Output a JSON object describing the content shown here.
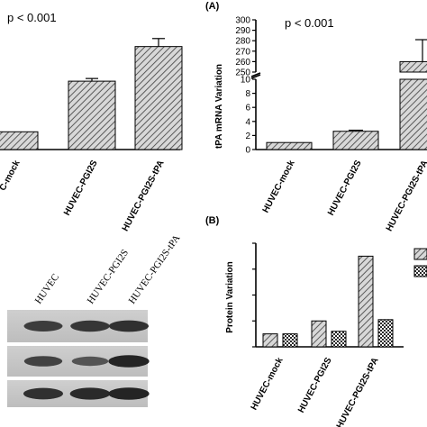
{
  "chart_data": [
    {
      "id": "left-partial-bar",
      "type": "bar",
      "title": "p < 0.001",
      "categories": [
        "HUVEC-mock",
        "HUVEC-PGI2S",
        "HUVEC-PGI2S-tPA"
      ],
      "tick_labels": [
        "C-mock",
        "HUVEC-PGI2S",
        "HUVEC-PGI2S-tPA"
      ],
      "values": [
        1.0,
        3.85,
        5.8
      ],
      "errors": [
        0.0,
        0.15,
        0.45
      ],
      "ylim": [
        0,
        7
      ]
    },
    {
      "id": "panel-A",
      "panel_label": "(A)",
      "type": "bar",
      "title": "p < 0.001",
      "ylabel": "tPA mRNA Variation",
      "categories": [
        "HUVEC-mock",
        "HUVEC-PGI2S",
        "HUVEC-PGI2S-tPA"
      ],
      "values": [
        1.0,
        2.6,
        260
      ],
      "errors": [
        0.0,
        0.15,
        21
      ],
      "y_axis_broken": true,
      "lower_ylim": [
        0,
        10
      ],
      "lower_ticks": [
        0,
        2,
        4,
        6,
        8,
        10
      ],
      "upper_ylim": [
        250,
        300
      ],
      "upper_ticks": [
        250,
        260,
        270,
        280,
        290,
        300
      ]
    },
    {
      "id": "panel-B",
      "panel_label": "(B)",
      "type": "bar",
      "ylabel": "Protein Variation",
      "categories": [
        "HUVEC-mock",
        "HUVEC-PGI2S",
        "HUVEC-PGI2S-tPA"
      ],
      "series": [
        {
          "values": [
            1.0,
            2.0,
            7.0
          ],
          "pattern": "diagonal-hatch"
        },
        {
          "values": [
            1.0,
            1.2,
            2.1
          ],
          "pattern": "checker"
        }
      ],
      "ylim": [
        0,
        8
      ],
      "legend": "right"
    }
  ],
  "blot": {
    "lane_labels": [
      "HUVEC",
      "HUVEC-PGI2S",
      "HUVEC-PGI2S-tPA"
    ],
    "band_intensity": [
      [
        0.75,
        0.8,
        0.85
      ],
      [
        0.7,
        0.55,
        0.95
      ],
      [
        0.85,
        0.9,
        0.95
      ]
    ]
  }
}
